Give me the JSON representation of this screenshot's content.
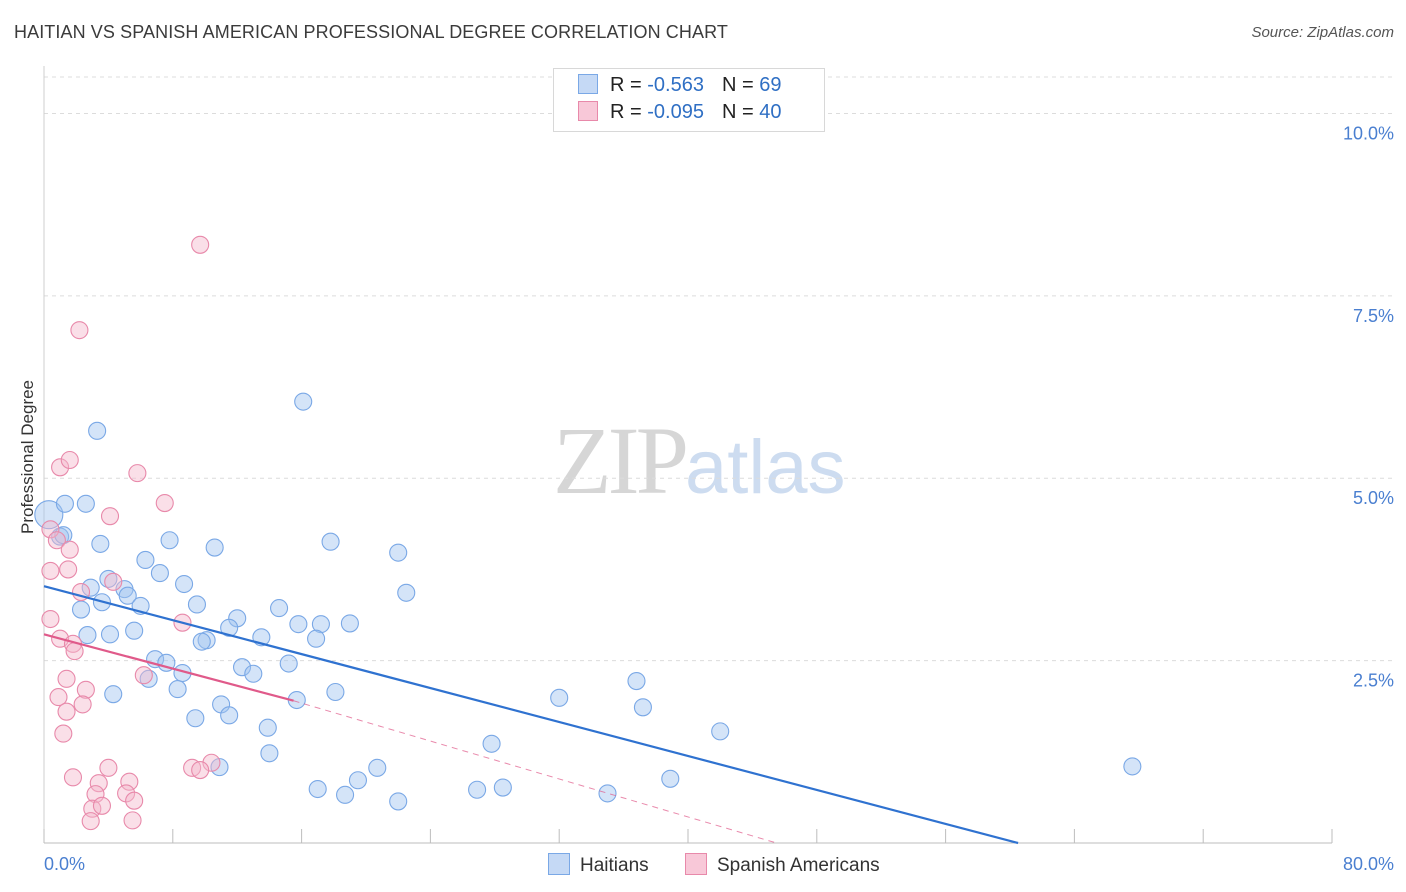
{
  "header": {
    "title": "HAITIAN VS SPANISH AMERICAN PROFESSIONAL DEGREE CORRELATION CHART",
    "source": "Source: ZipAtlas.com"
  },
  "watermark": {
    "zip": "ZIP",
    "atlas": "atlas"
  },
  "legend": {
    "rows": [
      {
        "r_label": "R = ",
        "r_value": "-0.563",
        "n_label": "N = ",
        "n_value": "69",
        "color": "#7aa8e6",
        "fill": "#c5d9f5"
      },
      {
        "r_label": "R = ",
        "r_value": "-0.095",
        "n_label": "N = ",
        "n_value": "40",
        "color": "#e889aa",
        "fill": "#f8c8d8"
      }
    ]
  },
  "bottom_legend": [
    {
      "label": "Haitians",
      "color": "#7aa8e6",
      "fill": "#c5d9f5"
    },
    {
      "label": "Spanish Americans",
      "color": "#e889aa",
      "fill": "#f8c8d8"
    }
  ],
  "chart_data": {
    "type": "scatter",
    "title": "HAITIAN VS SPANISH AMERICAN PROFESSIONAL DEGREE CORRELATION CHART",
    "xlabel": "",
    "ylabel": "Professional Degree",
    "xlim": [
      0,
      80
    ],
    "ylim": [
      0,
      10.5
    ],
    "x_tick_labels": [
      "0.0%",
      "80.0%"
    ],
    "y_ticks": [
      2.5,
      5.0,
      7.5,
      10.0
    ],
    "y_tick_labels": [
      "2.5%",
      "5.0%",
      "7.5%",
      "10.0%"
    ],
    "grid": true,
    "series": [
      {
        "name": "Haitians",
        "stroke": "#7aa8e6",
        "fill": "rgba(160,195,240,0.45)",
        "trend_color": "#2f72d0",
        "trend": {
          "x0": 0,
          "y0": 3.52,
          "x1": 60.5,
          "y1": 0.0,
          "dashed_to": null
        },
        "points": [
          [
            0.3,
            4.5
          ],
          [
            1.0,
            4.2
          ],
          [
            1.3,
            4.65
          ],
          [
            3.3,
            5.65
          ],
          [
            3.5,
            4.1
          ],
          [
            2.6,
            4.65
          ],
          [
            4.0,
            3.62
          ],
          [
            3.6,
            3.3
          ],
          [
            2.3,
            3.2
          ],
          [
            2.9,
            3.5
          ],
          [
            5.0,
            3.48
          ],
          [
            5.2,
            3.39
          ],
          [
            6.0,
            3.25
          ],
          [
            6.3,
            3.88
          ],
          [
            7.2,
            3.7
          ],
          [
            7.8,
            4.15
          ],
          [
            8.7,
            3.55
          ],
          [
            9.5,
            3.27
          ],
          [
            10.6,
            4.05
          ],
          [
            12.0,
            3.08
          ],
          [
            11.5,
            2.95
          ],
          [
            13.5,
            2.82
          ],
          [
            14.6,
            3.22
          ],
          [
            15.8,
            3.0
          ],
          [
            17.2,
            3.0
          ],
          [
            19.0,
            3.01
          ],
          [
            16.1,
            6.05
          ],
          [
            17.8,
            4.13
          ],
          [
            22.0,
            3.98
          ],
          [
            22.5,
            3.43
          ],
          [
            2.7,
            2.85
          ],
          [
            4.1,
            2.86
          ],
          [
            5.6,
            2.91
          ],
          [
            6.9,
            2.52
          ],
          [
            7.6,
            2.47
          ],
          [
            8.6,
            2.33
          ],
          [
            10.1,
            2.78
          ],
          [
            12.3,
            2.41
          ],
          [
            13.0,
            2.32
          ],
          [
            15.2,
            2.46
          ],
          [
            16.9,
            2.8
          ],
          [
            4.3,
            2.04
          ],
          [
            6.5,
            2.25
          ],
          [
            8.3,
            2.11
          ],
          [
            9.4,
            1.71
          ],
          [
            11.0,
            1.9
          ],
          [
            11.5,
            1.75
          ],
          [
            13.9,
            1.58
          ],
          [
            15.7,
            1.96
          ],
          [
            18.1,
            2.07
          ],
          [
            32.0,
            1.99
          ],
          [
            36.8,
            2.22
          ],
          [
            37.2,
            1.86
          ],
          [
            42.0,
            1.53
          ],
          [
            14.0,
            1.23
          ],
          [
            10.9,
            1.04
          ],
          [
            20.7,
            1.03
          ],
          [
            19.5,
            0.86
          ],
          [
            17.0,
            0.74
          ],
          [
            18.7,
            0.66
          ],
          [
            22.0,
            0.57
          ],
          [
            26.9,
            0.73
          ],
          [
            28.5,
            0.76
          ],
          [
            27.8,
            1.36
          ],
          [
            35.0,
            0.68
          ],
          [
            38.9,
            0.88
          ],
          [
            67.6,
            1.05
          ],
          [
            1.2,
            4.22
          ],
          [
            9.8,
            2.76
          ]
        ],
        "sizes": [
          [
            0.3,
            4.5,
            14
          ]
        ]
      },
      {
        "name": "Spanish Americans",
        "stroke": "#e889aa",
        "fill": "rgba(245,185,205,0.45)",
        "trend_color": "#e05a8a",
        "trend": {
          "x0": 0,
          "y0": 2.86,
          "x1": 15.5,
          "y1": 1.95,
          "dashed_to": {
            "x": 45.5,
            "y": 0.0
          }
        },
        "points": [
          [
            0.4,
            4.3
          ],
          [
            0.8,
            4.15
          ],
          [
            1.0,
            5.15
          ],
          [
            1.6,
            4.02
          ],
          [
            1.5,
            3.75
          ],
          [
            0.4,
            3.73
          ],
          [
            1.6,
            5.25
          ],
          [
            2.2,
            7.03
          ],
          [
            9.7,
            8.2
          ],
          [
            5.8,
            5.07
          ],
          [
            7.5,
            4.66
          ],
          [
            4.1,
            4.48
          ],
          [
            2.3,
            3.44
          ],
          [
            4.3,
            3.58
          ],
          [
            0.4,
            3.07
          ],
          [
            1.0,
            2.8
          ],
          [
            1.8,
            2.73
          ],
          [
            1.9,
            2.63
          ],
          [
            8.6,
            3.02
          ],
          [
            6.2,
            2.3
          ],
          [
            1.4,
            2.25
          ],
          [
            2.6,
            2.1
          ],
          [
            0.9,
            2.0
          ],
          [
            2.4,
            1.9
          ],
          [
            1.4,
            1.8
          ],
          [
            1.2,
            1.5
          ],
          [
            9.2,
            1.03
          ],
          [
            10.4,
            1.1
          ],
          [
            9.7,
            1.0
          ],
          [
            4.0,
            1.03
          ],
          [
            1.8,
            0.9
          ],
          [
            3.4,
            0.82
          ],
          [
            5.3,
            0.84
          ],
          [
            3.2,
            0.67
          ],
          [
            5.1,
            0.68
          ],
          [
            5.6,
            0.58
          ],
          [
            3.0,
            0.47
          ],
          [
            3.6,
            0.51
          ],
          [
            2.9,
            0.3
          ],
          [
            5.5,
            0.31
          ]
        ]
      }
    ]
  }
}
